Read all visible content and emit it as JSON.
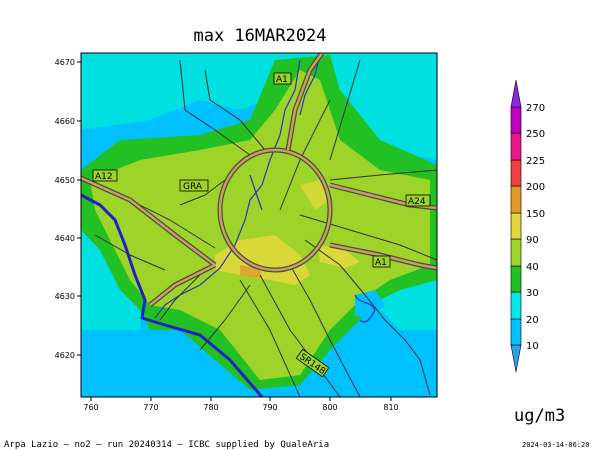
{
  "title": "max 16MAR2024",
  "unit": "ug/m3",
  "footer_left": "Arpa Lazio — no2 — run 20240314 — ICBC supplied by QualeAria",
  "footer_right": "2024-03-14-06:20",
  "axes": {
    "x_ticks": [
      "760",
      "770",
      "780",
      "790",
      "800",
      "810"
    ],
    "y_ticks": [
      "4670",
      "4660",
      "4650",
      "4640",
      "4630",
      "4620"
    ]
  },
  "road_labels": {
    "a1_north": "A1",
    "a12": "A12",
    "gra": "GRA",
    "a24": "A24",
    "a1_south": "A1",
    "sr148": "SR148"
  },
  "colorbar": {
    "labels": [
      "10",
      "20",
      "30",
      "40",
      "90",
      "150",
      "200",
      "225",
      "250",
      "270"
    ],
    "colors": {
      "below_10": "#29a3e8",
      "c10_20": "#00c0ff",
      "c20_30": "#00e8e8",
      "c30_40": "#22c022",
      "c40_90": "#9ed42a",
      "c90_150": "#e0d83a",
      "c150_200": "#e09a2a",
      "c200_225": "#f04040",
      "c225_250": "#e8188c",
      "c250_270": "#c000c0",
      "above_270": "#8a2be2"
    }
  }
}
